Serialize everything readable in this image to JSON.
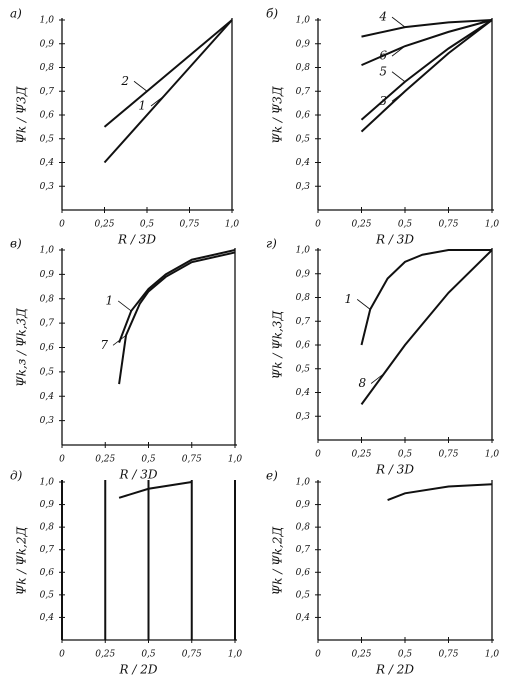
{
  "chart_data": [
    {
      "type": "line",
      "title": "а)",
      "xlabel": "R / 3D",
      "ylabel": "Ψk / Ψ3Д",
      "grid": false,
      "xlim": [
        0,
        1.0
      ],
      "ylim": [
        0.2,
        1.0
      ],
      "xticks": [
        0,
        {
          "value": 0.25,
          "label": "0,25"
        },
        {
          "value": 0.5,
          "label": "0,5"
        },
        {
          "value": 0.75,
          "label": "0,75"
        },
        {
          "value": 1.0,
          "label": "1,0"
        }
      ],
      "yticks": [
        {
          "value": 0.3,
          "label": "0,3"
        },
        {
          "value": 0.4,
          "label": "0,4"
        },
        {
          "value": 0.5,
          "label": "0,5"
        },
        {
          "value": 0.6,
          "label": "0,6"
        },
        {
          "value": 0.7,
          "label": "0,7"
        },
        {
          "value": 0.8,
          "label": "0,8"
        },
        {
          "value": 0.9,
          "label": "0,9"
        },
        {
          "value": 1.0,
          "label": "1,0"
        }
      ],
      "series": [
        {
          "name": "2",
          "color": "#111",
          "x": [
            0.25,
            0.5,
            1.0
          ],
          "values": [
            0.55,
            0.7,
            1.0
          ]
        },
        {
          "name": "1",
          "color": "#111",
          "x": [
            0.25,
            0.6,
            1.0
          ],
          "values": [
            0.4,
            0.68,
            1.0
          ]
        }
      ]
    },
    {
      "type": "line",
      "title": "б)",
      "xlabel": "R / 3D",
      "ylabel": "Ψk / Ψ3Д",
      "grid": false,
      "xlim": [
        0,
        1.0
      ],
      "ylim": [
        0.2,
        1.0
      ],
      "xticks": [
        0,
        {
          "value": 0.25,
          "label": "0,25"
        },
        {
          "value": 0.5,
          "label": "0,5"
        },
        {
          "value": 0.75,
          "label": "0,75"
        },
        {
          "value": 1.0,
          "label": "1,0"
        }
      ],
      "yticks": [
        {
          "value": 0.3,
          "label": "0,3"
        },
        {
          "value": 0.4,
          "label": "0,4"
        },
        {
          "value": 0.5,
          "label": "0,5"
        },
        {
          "value": 0.6,
          "label": "0,6"
        },
        {
          "value": 0.7,
          "label": "0,7"
        },
        {
          "value": 0.8,
          "label": "0,8"
        },
        {
          "value": 0.9,
          "label": "0,9"
        },
        {
          "value": 1.0,
          "label": "1,0"
        }
      ],
      "series": [
        {
          "name": "4",
          "color": "#111",
          "x": [
            0.25,
            0.5,
            0.75,
            1.0
          ],
          "values": [
            0.93,
            0.97,
            0.99,
            1.0
          ]
        },
        {
          "name": "6",
          "color": "#111",
          "x": [
            0.25,
            0.5,
            0.75,
            1.0
          ],
          "values": [
            0.81,
            0.89,
            0.95,
            1.0
          ]
        },
        {
          "name": "5",
          "color": "#111",
          "x": [
            0.25,
            0.5,
            0.75,
            1.0
          ],
          "values": [
            0.58,
            0.74,
            0.88,
            1.0
          ]
        },
        {
          "name": "3",
          "color": "#111",
          "x": [
            0.25,
            0.5,
            0.75,
            1.0
          ],
          "values": [
            0.53,
            0.7,
            0.86,
            1.0
          ]
        }
      ]
    },
    {
      "type": "line",
      "title": "в)",
      "xlabel": "R / 3D",
      "ylabel": "Ψk,з / Ψk,3Д",
      "grid": false,
      "xlim": [
        0,
        1.0
      ],
      "ylim": [
        0.2,
        1.0
      ],
      "xticks": [
        0,
        {
          "value": 0.25,
          "label": "0,25"
        },
        {
          "value": 0.5,
          "label": "0,5"
        },
        {
          "value": 0.75,
          "label": "0,75"
        },
        {
          "value": 1.0,
          "label": "1,0"
        }
      ],
      "yticks": [
        {
          "value": 0.3,
          "label": "0,3"
        },
        {
          "value": 0.4,
          "label": "0,4"
        },
        {
          "value": 0.5,
          "label": "0,5"
        },
        {
          "value": 0.6,
          "label": "0,6"
        },
        {
          "value": 0.7,
          "label": "0,7"
        },
        {
          "value": 0.8,
          "label": "0,8"
        },
        {
          "value": 0.9,
          "label": "0,9"
        },
        {
          "value": 1.0,
          "label": "1,0"
        }
      ],
      "series": [
        {
          "name": "1",
          "color": "#111",
          "x": [
            0.33,
            0.4,
            0.5,
            0.6,
            0.75,
            1.0
          ],
          "values": [
            0.62,
            0.75,
            0.84,
            0.9,
            0.96,
            1.0
          ]
        },
        {
          "name": "7",
          "color": "#111",
          "x": [
            0.33,
            0.37,
            0.45,
            0.5,
            0.6,
            0.75,
            1.0
          ],
          "values": [
            0.45,
            0.65,
            0.78,
            0.83,
            0.89,
            0.95,
            0.99
          ]
        }
      ]
    },
    {
      "type": "line",
      "title": "г)",
      "xlabel": "R / 3D",
      "ylabel": "Ψk / Ψk,3Д",
      "grid": false,
      "xlim": [
        0,
        1.0
      ],
      "ylim": [
        0.2,
        1.0
      ],
      "xticks": [
        0,
        {
          "value": 0.25,
          "label": "0,25"
        },
        {
          "value": 0.5,
          "label": "0,5"
        },
        {
          "value": 0.75,
          "label": "0,75"
        },
        {
          "value": 1.0,
          "label": "1,0"
        }
      ],
      "yticks": [
        {
          "value": 0.3,
          "label": "0,3"
        },
        {
          "value": 0.4,
          "label": "0,4"
        },
        {
          "value": 0.5,
          "label": "0,5"
        },
        {
          "value": 0.6,
          "label": "0,6"
        },
        {
          "value": 0.7,
          "label": "0,7"
        },
        {
          "value": 0.8,
          "label": "0,8"
        },
        {
          "value": 0.9,
          "label": "0,9"
        },
        {
          "value": 1.0,
          "label": "1,0"
        }
      ],
      "series": [
        {
          "name": "1",
          "color": "#111",
          "x": [
            0.25,
            0.3,
            0.4,
            0.5,
            0.6,
            0.75,
            1.0
          ],
          "values": [
            0.6,
            0.75,
            0.88,
            0.95,
            0.98,
            1.0,
            1.0
          ]
        },
        {
          "name": "8",
          "color": "#111",
          "x": [
            0.25,
            0.38,
            0.5,
            0.75,
            1.0
          ],
          "values": [
            0.35,
            0.48,
            0.6,
            0.82,
            1.0
          ]
        }
      ]
    },
    {
      "type": "line",
      "title": "д)",
      "xlabel": "R / 2D",
      "ylabel": "Ψk / Ψk,2Д",
      "grid": true,
      "xlim": [
        0,
        1.0
      ],
      "ylim": [
        0.3,
        1.0
      ],
      "xticks": [
        0,
        {
          "value": 0.25,
          "label": "0,25"
        },
        {
          "value": 0.5,
          "label": "0,5"
        },
        {
          "value": 0.75,
          "label": "0,75"
        },
        {
          "value": 1.0,
          "label": "1,0"
        }
      ],
      "yticks": [
        {
          "value": 0.4,
          "label": "0,4"
        },
        {
          "value": 0.5,
          "label": "0,5"
        },
        {
          "value": 0.6,
          "label": "0,6"
        },
        {
          "value": 0.7,
          "label": "0,7"
        },
        {
          "value": 0.8,
          "label": "0,8"
        },
        {
          "value": 0.9,
          "label": "0,9"
        },
        {
          "value": 1.0,
          "label": "1,0"
        }
      ],
      "series": [
        {
          "color": "#111",
          "x": [
            0.33,
            0.5,
            0.75
          ],
          "values": [
            0.93,
            0.97,
            1.0
          ]
        }
      ]
    },
    {
      "type": "line",
      "title": "е)",
      "xlabel": "R / 2D",
      "ylabel": "Ψk / Ψk,2Д",
      "grid": false,
      "xlim": [
        0,
        1.0
      ],
      "ylim": [
        0.3,
        1.0
      ],
      "xticks": [
        0,
        {
          "value": 0.25,
          "label": "0,25"
        },
        {
          "value": 0.5,
          "label": "0,5"
        },
        {
          "value": 0.75,
          "label": "0,75"
        },
        {
          "value": 1.0,
          "label": "1,0"
        }
      ],
      "yticks": [
        {
          "value": 0.4,
          "label": "0,4"
        },
        {
          "value": 0.5,
          "label": "0,5"
        },
        {
          "value": 0.6,
          "label": "0,6"
        },
        {
          "value": 0.7,
          "label": "0,7"
        },
        {
          "value": 0.8,
          "label": "0,8"
        },
        {
          "value": 0.9,
          "label": "0,9"
        },
        {
          "value": 1.0,
          "label": "1,0"
        }
      ],
      "series": [
        {
          "color": "#111",
          "x": [
            0.4,
            0.5,
            0.75,
            1.0
          ],
          "values": [
            0.92,
            0.95,
            0.98,
            0.99
          ]
        }
      ]
    }
  ]
}
